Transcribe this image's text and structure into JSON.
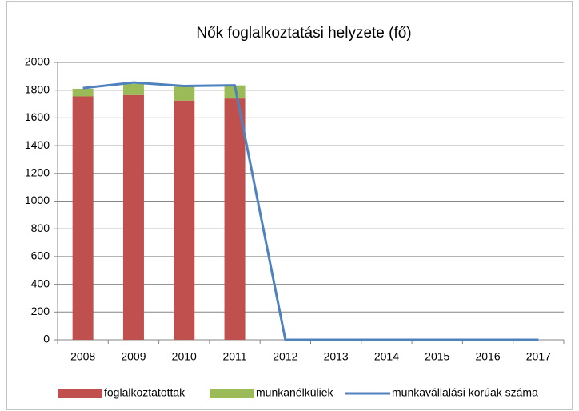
{
  "chart_data": {
    "type": "bar",
    "stacked": true,
    "title": "Nők foglalkoztatási helyzete (fő)",
    "categories": [
      "2008",
      "2009",
      "2010",
      "2011",
      "2012",
      "2013",
      "2014",
      "2015",
      "2016",
      "2017"
    ],
    "series": [
      {
        "name": "foglalkoztatottak",
        "color": "#c0504d",
        "type": "bar",
        "values": [
          1755,
          1765,
          1725,
          1740,
          null,
          null,
          null,
          null,
          null,
          null
        ]
      },
      {
        "name": "munkanélküliek",
        "color": "#9bbb59",
        "type": "bar",
        "values": [
          55,
          80,
          100,
          95,
          null,
          null,
          null,
          null,
          null,
          null
        ]
      },
      {
        "name": "munkavállalási korúak száma",
        "color": "#4f81bd",
        "type": "line",
        "values": [
          1815,
          1855,
          1830,
          1835,
          0,
          0,
          0,
          0,
          0,
          0
        ]
      }
    ],
    "ylim": [
      0,
      2000
    ],
    "yticks": [
      0,
      200,
      400,
      600,
      800,
      1000,
      1200,
      1400,
      1600,
      1800,
      2000
    ],
    "grid": true,
    "legend": "bottom"
  }
}
